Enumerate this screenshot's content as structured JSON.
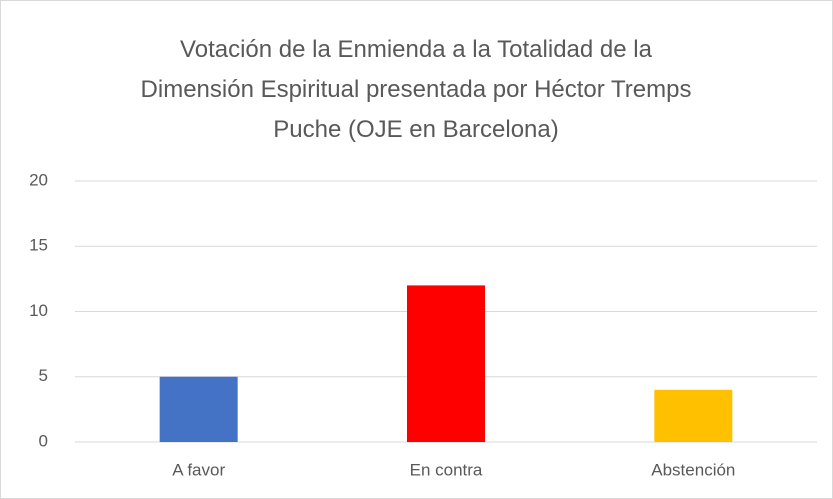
{
  "chart_data": {
    "type": "bar",
    "title": "Votación de la Enmienda a la Totalidad de la Dimensión Espiritual presentada por Héctor Tremps Puche (OJE en Barcelona)",
    "categories": [
      "A favor",
      "En contra",
      "Abstención"
    ],
    "values": [
      5,
      12,
      4
    ],
    "colors": [
      "#4472c4",
      "#ff0000",
      "#ffc000"
    ],
    "ylim": [
      0,
      20
    ],
    "yticks": [
      0,
      5,
      10,
      15,
      20
    ],
    "grid": true
  }
}
